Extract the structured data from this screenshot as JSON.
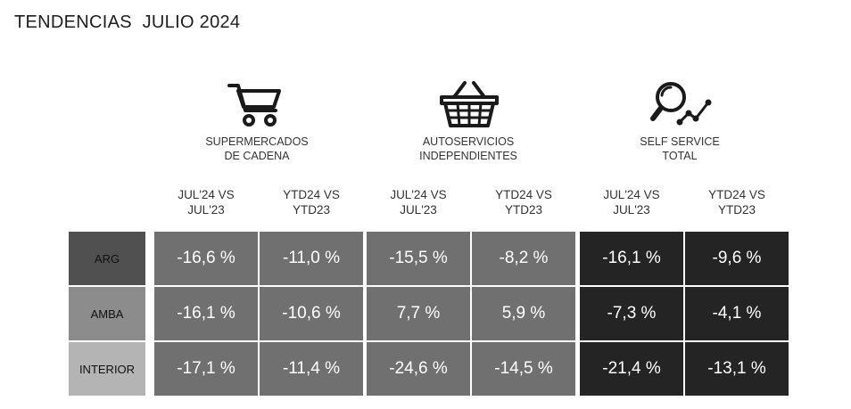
{
  "title": "TENDENCIAS  JULIO 2024",
  "groups": [
    {
      "icon": "shopping-cart-icon",
      "label_line1": "SUPERMERCADOS",
      "label_line2": "DE CADENA"
    },
    {
      "icon": "shopping-basket-icon",
      "label_line1": "AUTOSERVICIOS",
      "label_line2": "INDEPENDIENTES"
    },
    {
      "icon": "magnifier-trend-icon",
      "label_line1": "SELF SERVICE",
      "label_line2": "TOTAL"
    }
  ],
  "columns": [
    {
      "line1": "JUL'24 VS",
      "line2": "JUL'23"
    },
    {
      "line1": "YTD24 VS",
      "line2": "YTD23"
    },
    {
      "line1": "JUL'24 VS",
      "line2": "JUL'23"
    },
    {
      "line1": "YTD24 VS",
      "line2": "YTD23"
    },
    {
      "line1": "JUL'24 VS",
      "line2": "JUL'23"
    },
    {
      "line1": "YTD24 VS",
      "line2": "YTD23"
    }
  ],
  "rows": [
    {
      "label": "ARG",
      "label_color": "#505050",
      "values": [
        "-16,6 %",
        "-11,0 %",
        "-15,5 %",
        "-8,2 %",
        "-16,1 %",
        "-9,6 %"
      ]
    },
    {
      "label": "AMBA",
      "label_color": "#8c8c8c",
      "values": [
        "-16,1 %",
        "-10,6 %",
        "7,7 %",
        "5,9 %",
        "-7,3 %",
        "-4,1 %"
      ]
    },
    {
      "label": "INTERIOR",
      "label_color": "#b4b4b4",
      "values": [
        "-17,1 %",
        "-11,4 %",
        "-24,6 %",
        "-14,5 %",
        "-21,4 %",
        "-13,1 %"
      ]
    }
  ],
  "colors": {
    "cell_light": "#707070",
    "cell_dark": "#242424",
    "text": "#222222"
  }
}
